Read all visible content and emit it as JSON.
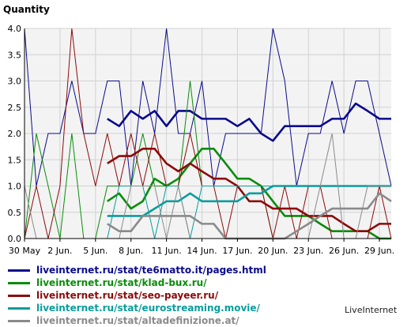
{
  "chart_data": {
    "type": "line",
    "ylabel": "Quantity",
    "ylim": [
      0,
      4
    ],
    "yticks": [
      "0.0",
      "0.5",
      "1.0",
      "1.5",
      "2.0",
      "2.5",
      "3.0",
      "3.5",
      "4.0"
    ],
    "xticks": [
      "30 May",
      "2 Jun.",
      "5 Jun.",
      "8 Jun.",
      "11 Jun.",
      "14 Jun.",
      "17 Jun.",
      "20 Jun.",
      "23 Jun.",
      "26 Jun.",
      "29 Jun."
    ],
    "x_days": 31,
    "grid": true,
    "series": [
      {
        "name": "liveinternet.ru/stat/te6matto.it/pages.html",
        "color": "#0a0a8c",
        "daily": [
          4,
          1,
          2,
          2,
          3,
          2,
          2,
          3,
          3,
          1,
          3,
          2,
          4,
          2,
          2,
          3,
          1,
          2,
          2,
          2,
          2,
          4,
          3,
          1,
          2,
          2,
          3,
          2,
          3,
          3,
          2,
          1
        ],
        "avg": [
          null,
          null,
          null,
          null,
          null,
          null,
          null,
          2.28,
          2.14,
          2.43,
          2.28,
          2.43,
          2.14,
          2.43,
          2.43,
          2.28,
          2.28,
          2.28,
          2.14,
          2.28,
          2.0,
          1.86,
          2.14,
          2.14,
          2.14,
          2.14,
          2.28,
          2.28,
          2.57,
          2.43,
          2.28,
          2.28
        ]
      },
      {
        "name": "liveinternet.ru/stat/klad-bux.ru/",
        "color": "#0a8c0a",
        "daily": [
          0,
          2,
          1,
          0,
          2,
          0,
          0,
          1,
          1,
          1,
          2,
          1,
          1,
          1,
          3,
          1,
          1,
          1,
          1,
          1,
          1,
          0,
          0,
          0,
          0,
          0,
          0,
          0,
          0,
          0,
          0,
          0
        ],
        "avg": [
          null,
          null,
          null,
          null,
          null,
          null,
          null,
          0.71,
          0.86,
          0.57,
          0.71,
          1.14,
          1.0,
          1.14,
          1.43,
          1.71,
          1.71,
          1.43,
          1.14,
          1.14,
          1.0,
          0.71,
          0.43,
          0.43,
          0.43,
          0.28,
          0.14,
          0.14,
          0.14,
          0.14,
          0.0,
          0.0
        ]
      },
      {
        "name": "liveinternet.ru/stat/seo-payeer.ru/",
        "color": "#8c0a0a",
        "daily": [
          0,
          1,
          0,
          1,
          4,
          2,
          1,
          2,
          1,
          2,
          1,
          2,
          1,
          1,
          2,
          1,
          1,
          0,
          1,
          1,
          1,
          0,
          1,
          0,
          1,
          1,
          0,
          0,
          0,
          0,
          1,
          0
        ],
        "avg": [
          null,
          null,
          null,
          null,
          null,
          null,
          null,
          1.43,
          1.57,
          1.57,
          1.71,
          1.71,
          1.43,
          1.28,
          1.43,
          1.28,
          1.14,
          1.14,
          1.0,
          0.71,
          0.71,
          0.57,
          0.57,
          0.57,
          0.43,
          0.43,
          0.43,
          0.28,
          0.14,
          0.14,
          0.28,
          0.28
        ]
      },
      {
        "name": "liveinternet.ru/stat/eurostreaming.movie/",
        "color": "#0a9c9c",
        "daily": [
          0,
          0,
          0,
          0,
          0,
          0,
          0,
          0,
          1,
          1,
          1,
          0,
          1,
          1,
          0,
          1,
          1,
          1,
          1,
          1,
          1,
          1,
          1,
          1,
          1,
          1,
          1,
          1,
          1,
          1,
          1,
          1
        ],
        "avg": [
          null,
          null,
          null,
          null,
          null,
          null,
          null,
          0.43,
          0.43,
          0.43,
          0.43,
          0.57,
          0.71,
          0.71,
          0.86,
          0.71,
          0.71,
          0.71,
          0.71,
          0.86,
          0.86,
          1.0,
          1.0,
          1.0,
          1.0,
          1.0,
          1.0,
          1.0,
          1.0,
          1.0,
          1.0,
          1.0
        ]
      },
      {
        "name": "liveinternet.ru/stat/altadefinizione.at/",
        "color": "#8a8a8a",
        "daily": [
          1,
          0,
          0,
          0,
          0,
          0,
          0,
          0,
          0,
          1,
          1,
          1,
          0,
          1,
          0,
          0,
          0,
          0,
          0,
          0,
          0,
          0,
          0,
          0,
          0,
          1,
          2,
          0,
          0,
          1,
          1,
          1
        ],
        "avg": [
          null,
          null,
          null,
          null,
          null,
          null,
          null,
          0.28,
          0.14,
          0.14,
          0.43,
          0.43,
          0.43,
          0.43,
          0.43,
          0.28,
          0.28,
          0.0,
          0.0,
          0.0,
          0.0,
          0.0,
          0.0,
          0.14,
          0.28,
          0.43,
          0.57,
          0.57,
          0.57,
          0.57,
          0.86,
          0.71
        ]
      }
    ]
  },
  "brand": "LiveInternet"
}
